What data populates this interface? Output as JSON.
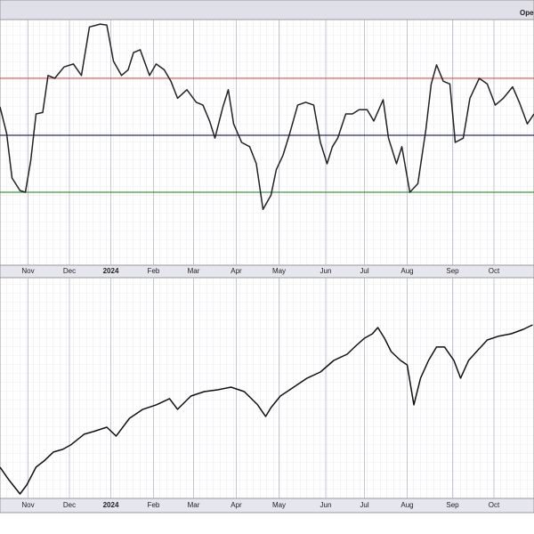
{
  "header": {
    "text": "Ope"
  },
  "chart_data": [
    {
      "type": "line",
      "x": [
        0,
        5,
        9,
        15,
        19,
        23,
        27,
        32,
        36,
        41,
        48,
        55,
        61,
        67,
        75,
        80,
        85,
        91,
        96,
        100,
        105,
        112,
        117,
        123,
        128,
        133,
        140,
        147,
        152,
        157,
        161,
        167,
        171,
        175,
        181,
        187,
        192,
        197,
        203,
        207,
        212,
        217,
        223,
        229,
        235,
        240,
        245,
        249,
        253,
        259,
        264,
        269,
        275,
        280,
        287,
        291,
        297,
        301,
        307,
        313,
        319,
        323,
        327,
        332,
        337,
        341,
        347,
        352,
        359,
        365,
        371,
        377,
        384,
        389,
        395,
        400
      ],
      "series": [
        {
          "color": "#222222",
          "values": [
            60,
            50.6,
            35,
            30.6,
            30,
            41,
            57.5,
            58,
            71,
            70,
            74,
            75,
            71,
            88,
            89,
            88.7,
            76,
            71,
            73,
            79,
            80,
            71,
            75,
            73,
            69,
            63,
            66,
            61.6,
            60.6,
            55,
            49,
            60,
            66,
            54,
            47.5,
            46,
            40,
            24,
            29,
            38,
            43,
            50.6,
            60.6,
            61.6,
            60.6,
            47.5,
            40,
            46,
            49,
            57.5,
            57.5,
            59,
            59,
            55,
            62.5,
            49,
            40,
            46,
            30,
            33,
            52,
            68,
            74.7,
            69,
            68,
            47.5,
            49,
            63,
            70,
            68,
            60.6,
            63,
            67,
            61.6,
            54,
            57.5
          ]
        }
      ],
      "hlines": [
        {
          "value": 70,
          "color": "#d9534f"
        },
        {
          "value": 50,
          "color": "#2a2a6a"
        },
        {
          "value": 30,
          "color": "#3a9a3a"
        }
      ],
      "xlim": [
        0,
        400
      ],
      "ylim": [
        4.4,
        90.6
      ],
      "xticks": [
        {
          "value": 21,
          "label": "Nov"
        },
        {
          "value": 52,
          "label": "Dec"
        },
        {
          "value": 83,
          "label": "2024"
        },
        {
          "value": 115,
          "label": "Feb"
        },
        {
          "value": 145,
          "label": "Mar"
        },
        {
          "value": 177,
          "label": "Apr"
        },
        {
          "value": 209,
          "label": "May"
        },
        {
          "value": 244,
          "label": "Jun"
        },
        {
          "value": 273,
          "label": "Jul"
        },
        {
          "value": 305,
          "label": "Aug"
        },
        {
          "value": 339,
          "label": "Sep"
        },
        {
          "value": 370,
          "label": "Oct"
        }
      ]
    },
    {
      "type": "line",
      "x": [
        0,
        7,
        15,
        20,
        27,
        33,
        40,
        47,
        53,
        63,
        70,
        80,
        87,
        97,
        107,
        117,
        127,
        133,
        143,
        153,
        163,
        173,
        183,
        193,
        199,
        203,
        210,
        220,
        230,
        240,
        250,
        260,
        267,
        273,
        279,
        283,
        288,
        293,
        300,
        305,
        310,
        315,
        321,
        327,
        333,
        340,
        345,
        351,
        357,
        365,
        373,
        383,
        392,
        399
      ],
      "series": [
        {
          "color": "#111111",
          "values": [
            4363,
            4240,
            4117,
            4199,
            4363,
            4420,
            4502,
            4526,
            4567,
            4665,
            4690,
            4730,
            4649,
            4812,
            4894,
            4935,
            4992,
            4894,
            5016,
            5057,
            5073,
            5098,
            5057,
            4935,
            4829,
            4910,
            5016,
            5098,
            5180,
            5237,
            5343,
            5400,
            5482,
            5547,
            5588,
            5645,
            5547,
            5425,
            5343,
            5302,
            4935,
            5180,
            5343,
            5466,
            5466,
            5343,
            5180,
            5343,
            5425,
            5531,
            5564,
            5588,
            5629,
            5670
          ]
        }
      ],
      "xlim": [
        0,
        400
      ],
      "ylim": [
        4076,
        6103
      ],
      "xticks": [
        {
          "value": 21,
          "label": "Nov"
        },
        {
          "value": 52,
          "label": "Dec"
        },
        {
          "value": 83,
          "label": "2024"
        },
        {
          "value": 115,
          "label": "Feb"
        },
        {
          "value": 145,
          "label": "Mar"
        },
        {
          "value": 177,
          "label": "Apr"
        },
        {
          "value": 209,
          "label": "May"
        },
        {
          "value": 244,
          "label": "Jun"
        },
        {
          "value": 273,
          "label": "Jul"
        },
        {
          "value": 305,
          "label": "Aug"
        },
        {
          "value": 339,
          "label": "Sep"
        },
        {
          "value": 370,
          "label": "Oct"
        }
      ]
    }
  ]
}
